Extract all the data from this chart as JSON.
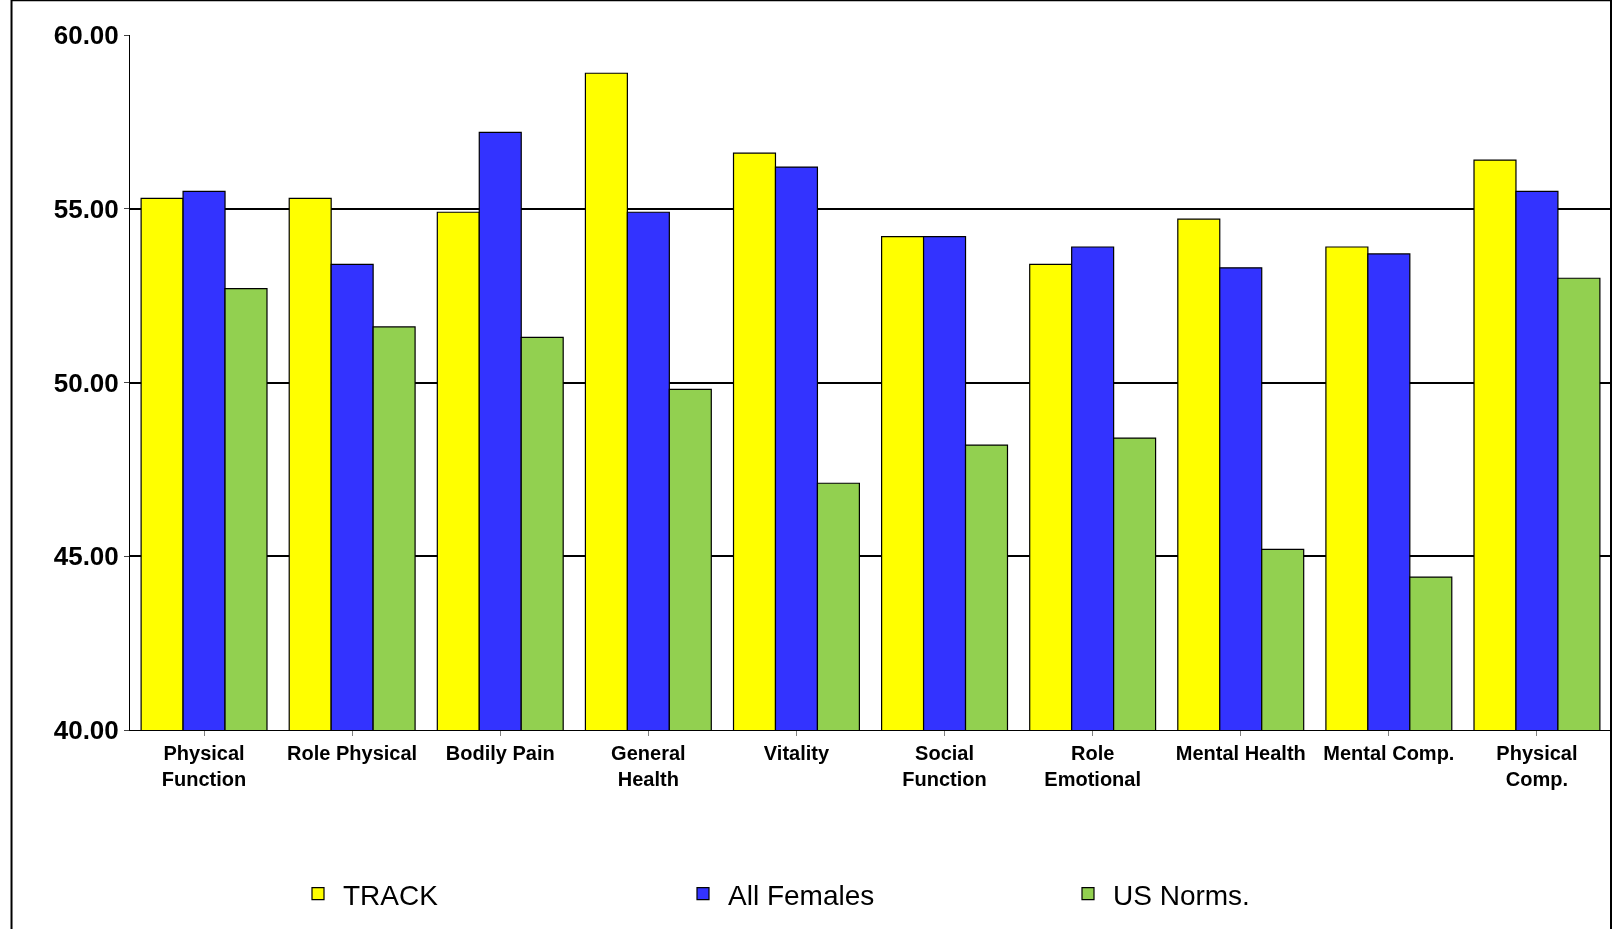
{
  "chart_data": {
    "type": "bar",
    "categories": [
      "Physical\nFunction",
      "Role Physical",
      "Bodily Pain",
      "General\nHealth",
      "Vitality",
      "Social\nFunction",
      "Role\nEmotional",
      "Mental Health",
      "Mental Comp.",
      "Physical\nComp."
    ],
    "series": [
      {
        "name": "TRACK",
        "color": "#ffff00",
        "values": [
          55.3,
          55.3,
          54.9,
          58.9,
          56.6,
          54.2,
          53.4,
          54.7,
          53.9,
          56.4
        ]
      },
      {
        "name": "All Females",
        "color": "#3333ff",
        "values": [
          55.5,
          53.4,
          57.2,
          54.9,
          56.2,
          54.2,
          53.9,
          53.3,
          53.7,
          55.5
        ]
      },
      {
        "name": "US Norms.",
        "color": "#92d050",
        "values": [
          52.7,
          51.6,
          51.3,
          49.8,
          47.1,
          48.2,
          48.4,
          45.2,
          44.4,
          53.0
        ]
      }
    ],
    "ylim": [
      40,
      60
    ],
    "yticks": [
      {
        "value": 40,
        "label": "40.00"
      },
      {
        "value": 45,
        "label": "45.00"
      },
      {
        "value": 50,
        "label": "50.00"
      },
      {
        "value": 55,
        "label": "55.00"
      },
      {
        "value": 60,
        "label": "60.00"
      }
    ],
    "grid": "y",
    "legend": "bottom"
  }
}
